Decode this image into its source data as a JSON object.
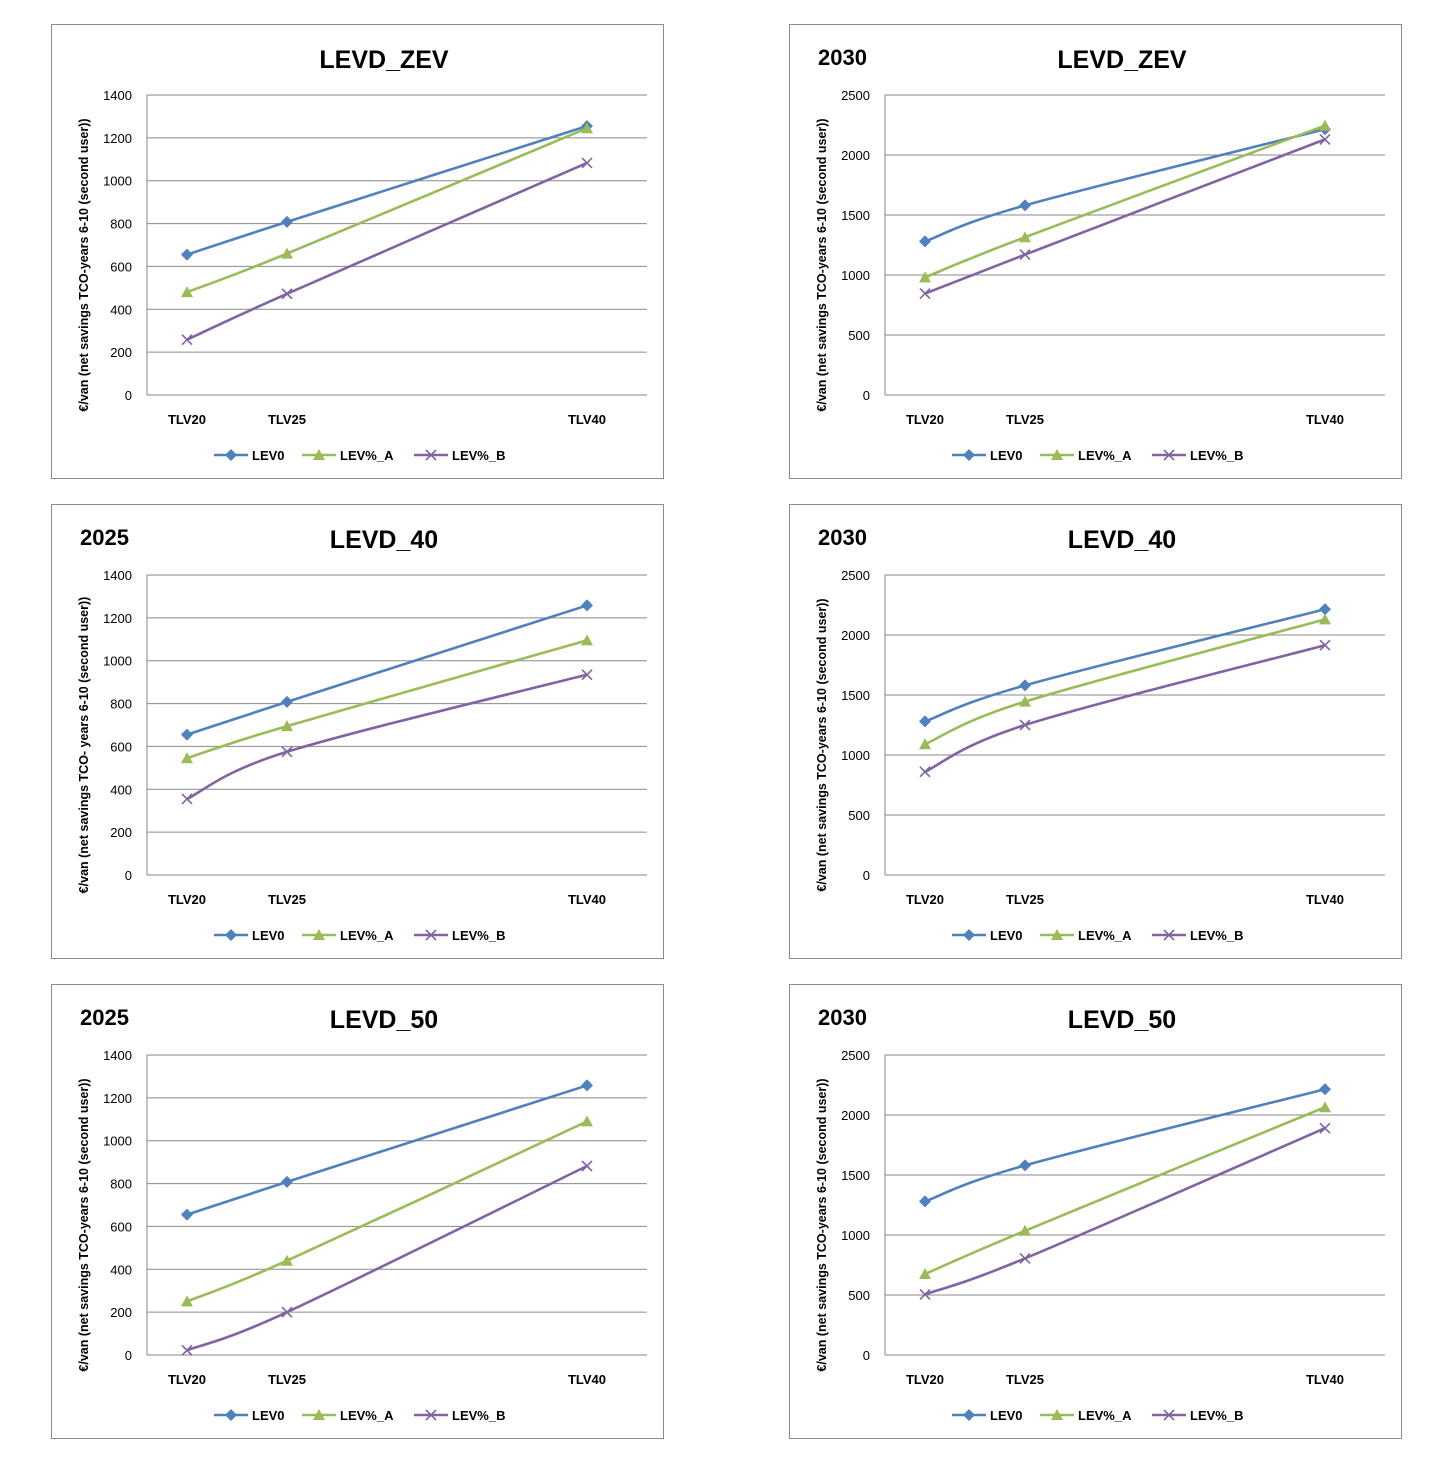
{
  "chart_data": [
    {
      "type": "line",
      "year": "",
      "title": "LEVD_ZEV",
      "ylabel": "€/van (net savings TCO-years 6-10 (second user))",
      "categories": [
        "TLV20",
        "TLV25",
        "TLV40"
      ],
      "x": [
        20,
        25,
        40
      ],
      "ylim": [
        0,
        1400
      ],
      "yticks": [
        0,
        200,
        400,
        600,
        800,
        1000,
        1200,
        1400
      ],
      "series": [
        {
          "name": "LEV0",
          "color": "#4f81bd",
          "marker": "diamond",
          "values": [
            655,
            808,
            1255
          ]
        },
        {
          "name": "LEV%_A",
          "color": "#9bbb59",
          "marker": "triangle",
          "values": [
            480,
            660,
            1245
          ]
        },
        {
          "name": "LEV%_B",
          "color": "#8064a2",
          "marker": "x",
          "values": [
            258,
            472,
            1083
          ]
        }
      ]
    },
    {
      "type": "line",
      "year": "2030",
      "title": "LEVD_ZEV",
      "ylabel": "€/van (net savings TCO-years 6-10 (second user))",
      "categories": [
        "TLV20",
        "TLV25",
        "TLV40"
      ],
      "x": [
        20,
        25,
        40
      ],
      "ylim": [
        0,
        2500
      ],
      "yticks": [
        0,
        500,
        1000,
        1500,
        2000,
        2500
      ],
      "series": [
        {
          "name": "LEV0",
          "color": "#4f81bd",
          "marker": "diamond",
          "values": [
            1280,
            1580,
            2215
          ]
        },
        {
          "name": "LEV%_A",
          "color": "#9bbb59",
          "marker": "triangle",
          "values": [
            980,
            1315,
            2245
          ]
        },
        {
          "name": "LEV%_B",
          "color": "#8064a2",
          "marker": "x",
          "values": [
            845,
            1170,
            2130
          ]
        }
      ]
    },
    {
      "type": "line",
      "year": "2025",
      "title": "LEVD_40",
      "ylabel": "€/van (net savings TCO- years 6-10 (second user))",
      "categories": [
        "TLV20",
        "TLV25",
        "TLV40"
      ],
      "x": [
        20,
        25,
        40
      ],
      "ylim": [
        0,
        1400
      ],
      "yticks": [
        0,
        200,
        400,
        600,
        800,
        1000,
        1200,
        1400
      ],
      "series": [
        {
          "name": "LEV0",
          "color": "#4f81bd",
          "marker": "diamond",
          "values": [
            655,
            808,
            1258
          ]
        },
        {
          "name": "LEV%_A",
          "color": "#9bbb59",
          "marker": "triangle",
          "values": [
            545,
            695,
            1095
          ]
        },
        {
          "name": "LEV%_B",
          "color": "#8064a2",
          "marker": "x",
          "values": [
            355,
            575,
            935
          ]
        }
      ]
    },
    {
      "type": "line",
      "year": "2030",
      "title": "LEVD_40",
      "ylabel": "€/van (net savings TCO-years 6-10 (second user))",
      "categories": [
        "TLV20",
        "TLV25",
        "TLV40"
      ],
      "x": [
        20,
        25,
        40
      ],
      "ylim": [
        0,
        2500
      ],
      "yticks": [
        0,
        500,
        1000,
        1500,
        2000,
        2500
      ],
      "series": [
        {
          "name": "LEV0",
          "color": "#4f81bd",
          "marker": "diamond",
          "values": [
            1280,
            1580,
            2215
          ]
        },
        {
          "name": "LEV%_A",
          "color": "#9bbb59",
          "marker": "triangle",
          "values": [
            1090,
            1445,
            2130
          ]
        },
        {
          "name": "LEV%_B",
          "color": "#8064a2",
          "marker": "x",
          "values": [
            860,
            1250,
            1915
          ]
        }
      ]
    },
    {
      "type": "line",
      "year": "2025",
      "title": "LEVD_50",
      "ylabel": "€/van (net savings TCO-years 6-10 (second user))",
      "categories": [
        "TLV20",
        "TLV25",
        "TLV40"
      ],
      "x": [
        20,
        25,
        40
      ],
      "ylim": [
        0,
        1400
      ],
      "yticks": [
        0,
        200,
        400,
        600,
        800,
        1000,
        1200,
        1400
      ],
      "series": [
        {
          "name": "LEV0",
          "color": "#4f81bd",
          "marker": "diamond",
          "values": [
            655,
            808,
            1258
          ]
        },
        {
          "name": "LEV%_A",
          "color": "#9bbb59",
          "marker": "triangle",
          "values": [
            250,
            440,
            1090
          ]
        },
        {
          "name": "LEV%_B",
          "color": "#8064a2",
          "marker": "x",
          "values": [
            22,
            200,
            882
          ]
        }
      ]
    },
    {
      "type": "line",
      "year": "2030",
      "title": "LEVD_50",
      "ylabel": "€/van (net savings TCO-years 6-10 (second user))",
      "categories": [
        "TLV20",
        "TLV25",
        "TLV40"
      ],
      "x": [
        20,
        25,
        40
      ],
      "ylim": [
        0,
        2500
      ],
      "yticks": [
        0,
        500,
        1000,
        1500,
        2000,
        2500
      ],
      "series": [
        {
          "name": "LEV0",
          "color": "#4f81bd",
          "marker": "diamond",
          "values": [
            1280,
            1580,
            2215
          ]
        },
        {
          "name": "LEV%_A",
          "color": "#9bbb59",
          "marker": "triangle",
          "values": [
            675,
            1035,
            2065
          ]
        },
        {
          "name": "LEV%_B",
          "color": "#8064a2",
          "marker": "x",
          "values": [
            505,
            805,
            1890
          ]
        }
      ]
    }
  ]
}
